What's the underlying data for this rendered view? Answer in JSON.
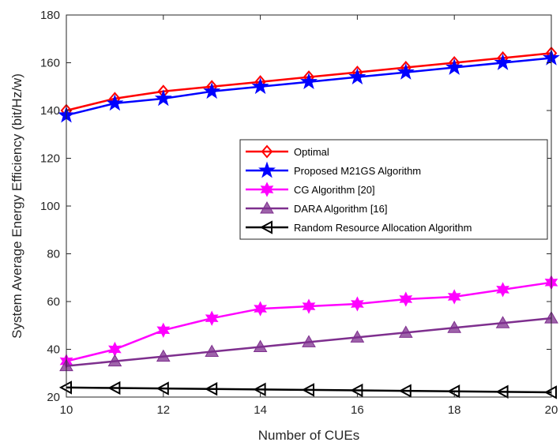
{
  "chart_data": {
    "type": "line",
    "title": "",
    "xlabel": "Number of CUEs",
    "ylabel": "System Average Energy Efficiency (bit/Hz/w)",
    "xlim": [
      10,
      20
    ],
    "ylim": [
      20,
      180
    ],
    "xticks": [
      "10",
      "12",
      "14",
      "16",
      "18",
      "20"
    ],
    "yticks": [
      "20",
      "40",
      "60",
      "80",
      "100",
      "120",
      "140",
      "160",
      "180"
    ],
    "grid": false,
    "legend_position": "center-right",
    "x": [
      10,
      11,
      12,
      13,
      14,
      15,
      16,
      17,
      18,
      19,
      20
    ],
    "series": [
      {
        "name": "Optimal",
        "color": "#ff0000",
        "marker": "diamond",
        "values": [
          140,
          145,
          148,
          150,
          152,
          154,
          156,
          158,
          160,
          162,
          164
        ]
      },
      {
        "name": "Proposed M21GS Algorithm",
        "color": "#0000ff",
        "marker": "pentagram",
        "values": [
          138,
          143,
          145,
          148,
          150,
          152,
          154,
          156,
          158,
          160,
          162
        ]
      },
      {
        "name": "CG Algorithm [20]",
        "color": "#ff00ff",
        "marker": "hexagram",
        "values": [
          35,
          40,
          48,
          53,
          57,
          58,
          59,
          61,
          62,
          65,
          68
        ]
      },
      {
        "name": "DARA Algorithm [16]",
        "color": "#7e2f8e",
        "marker": "triangle-up",
        "values": [
          33,
          35,
          37,
          39,
          41,
          43,
          45,
          47,
          49,
          51,
          53
        ]
      },
      {
        "name": "Random Resource Allocation Algorithm",
        "color": "#000000",
        "marker": "triangle-left",
        "values": [
          24,
          23.8,
          23.6,
          23.4,
          23.2,
          23,
          22.8,
          22.6,
          22.4,
          22.2,
          22
        ]
      }
    ]
  }
}
